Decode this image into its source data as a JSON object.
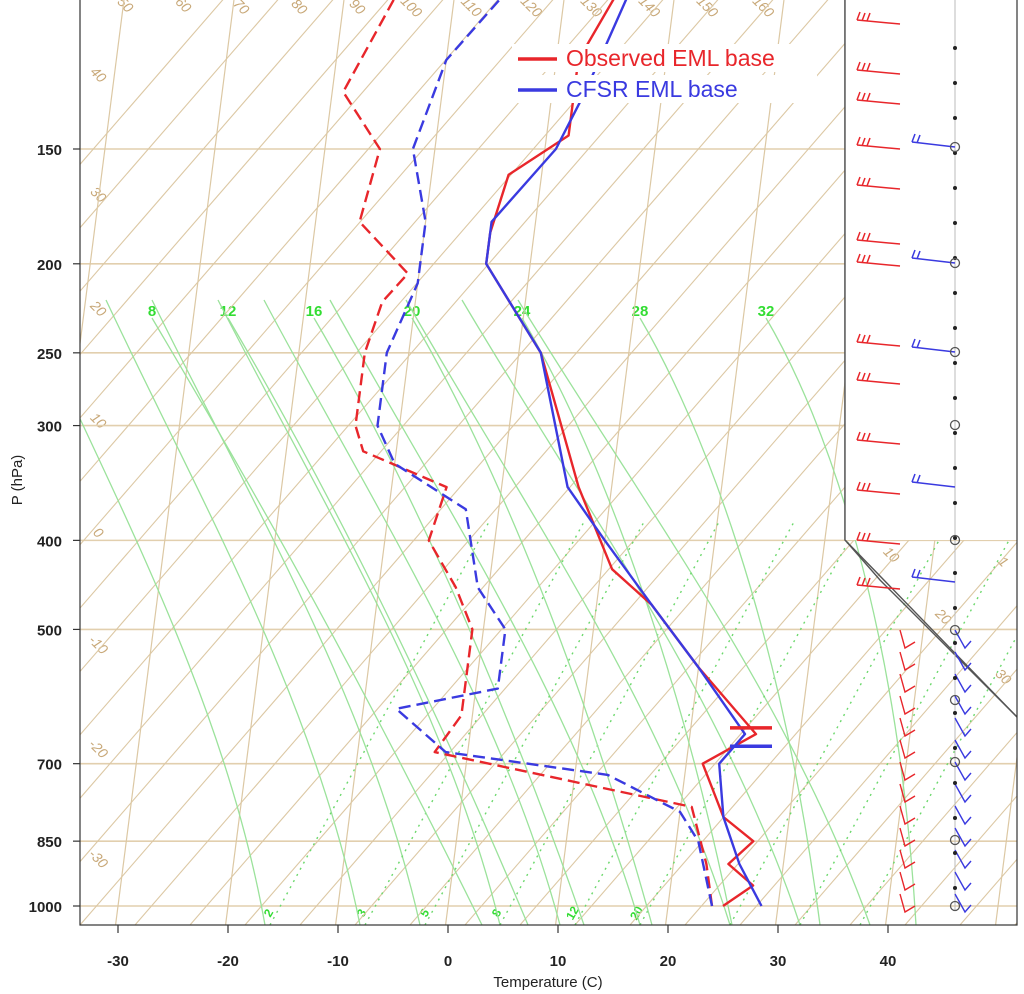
{
  "chart_data": {
    "type": "line",
    "title": "",
    "xlabel": "Temperature (C)",
    "ylabel": "P (hPa)",
    "xlim": [
      -34,
      50
    ],
    "ylim_hpa": [
      1000,
      100
    ],
    "x_ticks": [
      -30,
      -20,
      -10,
      0,
      10,
      20,
      30,
      40
    ],
    "y_ticks": [
      150,
      200,
      250,
      300,
      400,
      500,
      700,
      850,
      1000
    ],
    "mixing_ratio_labels": [
      "8",
      "12",
      "16",
      "20",
      "24",
      "28",
      "32"
    ],
    "background_labels": [
      "50",
      "60",
      "70",
      "80",
      "90",
      "100",
      "110",
      "120",
      "130",
      "140",
      "150",
      "160",
      "40",
      "30",
      "20",
      "10",
      "0",
      "-10",
      "-20",
      "-30",
      "30",
      "20",
      "10",
      "0",
      "10",
      "20",
      "30",
      "1",
      "2",
      "3",
      "5",
      "8",
      "12",
      "20"
    ],
    "legend": [
      {
        "name": "Observed EML base",
        "color": "#e8262b"
      },
      {
        "name": "CFSR EML base",
        "color": "#3a3ae0"
      }
    ],
    "series": [
      {
        "name": "Observed temperature",
        "color": "#e8262b",
        "style": "solid",
        "points": [
          [
            25,
            1000
          ],
          [
            27.5,
            950
          ],
          [
            25,
            900
          ],
          [
            27,
            850
          ],
          [
            24,
            800
          ],
          [
            21.5,
            700
          ],
          [
            26,
            650
          ],
          [
            20,
            550
          ],
          [
            15,
            470
          ],
          [
            11,
            430
          ],
          [
            7,
            350
          ],
          [
            2,
            250
          ],
          [
            -4,
            200
          ],
          [
            -4,
            185
          ],
          [
            -3,
            160
          ],
          [
            2,
            145
          ],
          [
            2,
            120
          ],
          [
            5,
            100
          ]
        ]
      },
      {
        "name": "Observed dewpoint",
        "color": "#e8262b",
        "style": "dashed",
        "points": [
          [
            24,
            1000
          ],
          [
            23,
            900
          ],
          [
            21,
            780
          ],
          [
            -3,
            680
          ],
          [
            -1,
            620
          ],
          [
            -1,
            500
          ],
          [
            -3,
            450
          ],
          [
            -6,
            400
          ],
          [
            -5,
            350
          ],
          [
            -13,
            320
          ],
          [
            -14,
            300
          ],
          [
            -14,
            270
          ],
          [
            -14,
            250
          ],
          [
            -13,
            220
          ],
          [
            -11,
            205
          ],
          [
            -16,
            180
          ],
          [
            -15,
            150
          ],
          [
            -19,
            130
          ],
          [
            -15,
            100
          ]
        ]
      },
      {
        "name": "CFSR temperature",
        "color": "#3a3ae0",
        "style": "solid",
        "points": [
          [
            28.5,
            1000
          ],
          [
            26,
            900
          ],
          [
            24,
            800
          ],
          [
            23,
            700
          ],
          [
            25,
            650
          ],
          [
            20,
            550
          ],
          [
            15,
            470
          ],
          [
            10,
            400
          ],
          [
            6,
            350
          ],
          [
            2,
            250
          ],
          [
            -4,
            200
          ],
          [
            -4,
            180
          ],
          [
            1,
            150
          ],
          [
            3,
            130
          ],
          [
            6,
            100
          ]
        ]
      },
      {
        "name": "CFSR dewpoint",
        "color": "#3a3ae0",
        "style": "dashed",
        "points": [
          [
            24,
            1000
          ],
          [
            22,
            850
          ],
          [
            20,
            790
          ],
          [
            13,
            720
          ],
          [
            -2,
            680
          ],
          [
            -7,
            610
          ],
          [
            2,
            580
          ],
          [
            2,
            500
          ],
          [
            -1,
            450
          ],
          [
            -3,
            370
          ],
          [
            -10,
            330
          ],
          [
            -12,
            300
          ],
          [
            -12,
            250
          ],
          [
            -10,
            210
          ],
          [
            -10,
            180
          ],
          [
            -12,
            150
          ],
          [
            -10,
            120
          ],
          [
            -5,
            100
          ]
        ]
      }
    ],
    "eml_base_markers": [
      {
        "series": "Observed EML base",
        "color": "#e8262b",
        "pressure": 640
      },
      {
        "series": "CFSR EML base",
        "color": "#3a3ae0",
        "pressure": 670
      }
    ]
  }
}
